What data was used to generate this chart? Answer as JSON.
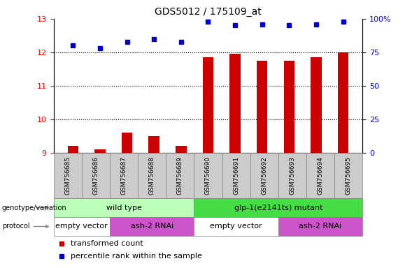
{
  "title": "GDS5012 / 175109_at",
  "samples": [
    "GSM756685",
    "GSM756686",
    "GSM756687",
    "GSM756688",
    "GSM756689",
    "GSM756690",
    "GSM756691",
    "GSM756692",
    "GSM756693",
    "GSM756694",
    "GSM756695"
  ],
  "bar_values": [
    9.2,
    9.1,
    9.6,
    9.5,
    9.2,
    11.85,
    11.95,
    11.75,
    11.75,
    11.85,
    12.0
  ],
  "dot_values": [
    80,
    78,
    83,
    85,
    83,
    98,
    95,
    96,
    95,
    96,
    98
  ],
  "ylim_left": [
    9,
    13
  ],
  "ylim_right": [
    0,
    100
  ],
  "yticks_left": [
    9,
    10,
    11,
    12,
    13
  ],
  "yticks_right": [
    0,
    25,
    50,
    75,
    100
  ],
  "bar_color": "#cc0000",
  "dot_color": "#0000cc",
  "bar_width": 0.4,
  "genotype_groups": [
    {
      "label": "wild type",
      "start": 0,
      "end": 4,
      "color": "#bbffbb"
    },
    {
      "label": "glp-1(e2141ts) mutant",
      "start": 5,
      "end": 10,
      "color": "#44dd44"
    }
  ],
  "protocol_groups": [
    {
      "label": "empty vector",
      "start": 0,
      "end": 1,
      "color": "#ffffff"
    },
    {
      "label": "ash-2 RNAi",
      "start": 2,
      "end": 4,
      "color": "#cc55cc"
    },
    {
      "label": "empty vector",
      "start": 5,
      "end": 7,
      "color": "#ffffff"
    },
    {
      "label": "ash-2 RNAi",
      "start": 8,
      "end": 10,
      "color": "#cc55cc"
    }
  ],
  "legend_items": [
    {
      "label": "transformed count",
      "color": "#cc0000"
    },
    {
      "label": "percentile rank within the sample",
      "color": "#0000cc"
    }
  ],
  "genotype_label": "genotype/variation",
  "protocol_label": "protocol",
  "bar_base": 9.0,
  "xtick_bg": "#cccccc",
  "ytick_right_labels": [
    "0",
    "25",
    "50",
    "75",
    "100%"
  ]
}
